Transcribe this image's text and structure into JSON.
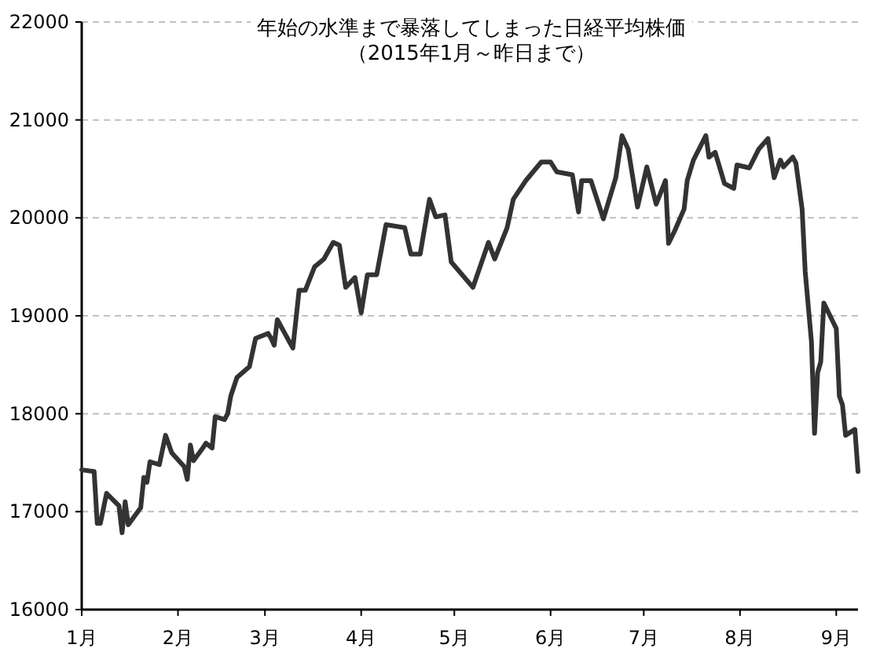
{
  "chart_data": {
    "type": "line",
    "title": "年始の水準まで暴落してしまった日経平均株価",
    "subtitle": "（2015年1月～昨日まで）",
    "x": [
      "2015-01-01",
      "2015-01-05",
      "2015-01-06",
      "2015-01-07",
      "2015-01-09",
      "2015-01-13",
      "2015-01-14",
      "2015-01-15",
      "2015-01-16",
      "2015-01-20",
      "2015-01-21",
      "2015-01-22",
      "2015-01-23",
      "2015-01-26",
      "2015-01-28",
      "2015-01-30",
      "2015-02-03",
      "2015-02-04",
      "2015-02-05",
      "2015-02-06",
      "2015-02-09",
      "2015-02-10",
      "2015-02-12",
      "2015-02-13",
      "2015-02-16",
      "2015-02-17",
      "2015-02-18",
      "2015-02-20",
      "2015-02-24",
      "2015-02-26",
      "2015-03-02",
      "2015-03-03",
      "2015-03-04",
      "2015-03-05",
      "2015-03-10",
      "2015-03-12",
      "2015-03-14",
      "2015-03-17",
      "2015-03-20",
      "2015-03-23",
      "2015-03-25",
      "2015-03-27",
      "2015-03-30",
      "2015-04-01",
      "2015-04-03",
      "2015-04-06",
      "2015-04-09",
      "2015-04-15",
      "2015-04-17",
      "2015-04-20",
      "2015-04-23",
      "2015-04-25",
      "2015-04-28",
      "2015-04-30",
      "2015-05-07",
      "2015-05-12",
      "2015-05-14",
      "2015-05-18",
      "2015-05-20",
      "2015-05-24",
      "2015-05-29",
      "2015-06-01",
      "2015-06-03",
      "2015-06-08",
      "2015-06-10",
      "2015-06-11",
      "2015-06-14",
      "2015-06-18",
      "2015-06-22",
      "2015-06-24",
      "2015-06-26",
      "2015-06-29",
      "2015-07-02",
      "2015-07-05",
      "2015-07-07",
      "2015-07-08",
      "2015-07-09",
      "2015-07-11",
      "2015-07-14",
      "2015-07-15",
      "2015-07-17",
      "2015-07-21",
      "2015-07-22",
      "2015-07-24",
      "2015-07-27",
      "2015-07-30",
      "2015-07-31",
      "2015-08-04",
      "2015-08-07",
      "2015-08-10",
      "2015-08-12",
      "2015-08-14",
      "2015-08-15",
      "2015-08-18",
      "2015-08-19",
      "2015-08-21",
      "2015-08-22",
      "2015-08-24",
      "2015-08-25",
      "2015-08-26",
      "2015-08-27",
      "2015-08-28",
      "2015-09-01",
      "2015-09-02",
      "2015-09-03",
      "2015-09-04",
      "2015-09-07",
      "2015-09-08"
    ],
    "series": [
      {
        "color": "#333333",
        "values": [
          17427,
          17410,
          16880,
          16880,
          17187,
          17060,
          16785,
          17100,
          16866,
          17040,
          17350,
          17300,
          17510,
          17480,
          17780,
          17600,
          17460,
          17330,
          17680,
          17520,
          17650,
          17700,
          17650,
          17970,
          17940,
          18000,
          18180,
          18370,
          18480,
          18770,
          18820,
          18770,
          18700,
          18960,
          18670,
          19260,
          19260,
          19500,
          19580,
          19750,
          19720,
          19290,
          19390,
          19030,
          19420,
          19420,
          19930,
          19900,
          19630,
          19630,
          20190,
          20010,
          20030,
          19550,
          19290,
          19750,
          19580,
          19900,
          20190,
          20380,
          20570,
          20570,
          20470,
          20440,
          20060,
          20380,
          20380,
          19990,
          20410,
          20840,
          20700,
          20110,
          20520,
          20140,
          20300,
          20380,
          19740,
          19870,
          20090,
          20380,
          20590,
          20840,
          20620,
          20670,
          20350,
          20300,
          20540,
          20510,
          20700,
          20810,
          20410,
          20590,
          20520,
          20620,
          20560,
          20090,
          19450,
          18740,
          17800,
          18420,
          18530,
          19130,
          18870,
          18180,
          18090,
          17780,
          17840,
          17410
        ]
      }
    ],
    "xlim": [
      "2015-01-01",
      "2015-09-08"
    ],
    "xticks": [
      {
        "value": "2015-01-01",
        "label": "1月"
      },
      {
        "value": "2015-02-01",
        "label": "2月"
      },
      {
        "value": "2015-03-01",
        "label": "3月"
      },
      {
        "value": "2015-04-01",
        "label": "4月"
      },
      {
        "value": "2015-05-01",
        "label": "5月"
      },
      {
        "value": "2015-06-01",
        "label": "6月"
      },
      {
        "value": "2015-07-01",
        "label": "7月"
      },
      {
        "value": "2015-08-01",
        "label": "8月"
      },
      {
        "value": "2015-09-01",
        "label": "9月"
      }
    ],
    "ylim": [
      16000,
      22000
    ],
    "yticks": [
      16000,
      17000,
      18000,
      19000,
      20000,
      21000,
      22000
    ],
    "grid": "y"
  }
}
